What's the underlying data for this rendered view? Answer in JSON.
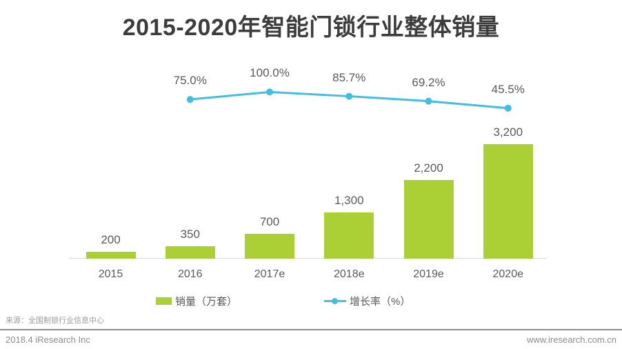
{
  "page": {
    "title": "2015-2020年智能门锁行业整体销量",
    "source_note": "来源：全国制锁行业信息中心",
    "footer_left": "2018.4 iResearch Inc",
    "footer_right": "www.iresearch.com.cn"
  },
  "colors": {
    "bar_green": "#aad035",
    "line_blue": "#41bee3",
    "title_text": "#3c3c3c",
    "label_text": "#595959",
    "axis_gray": "#d9d9d9",
    "footer_gray": "#8c8c8c"
  },
  "chart_data": {
    "type": "bar",
    "title": "2015-2020年智能门锁行业整体销量",
    "categories": [
      "2015",
      "2016",
      "2017e",
      "2018e",
      "2019e",
      "2020e"
    ],
    "series": [
      {
        "name": "销量（万套）",
        "type": "bar",
        "color": "#aad035",
        "values": [
          200,
          350,
          700,
          1300,
          2200,
          3200
        ],
        "labels": [
          "200",
          "350",
          "700",
          "1,300",
          "2,200",
          "3,200"
        ]
      },
      {
        "name": "增长率（%）",
        "type": "line",
        "color": "#41bee3",
        "categories": [
          "2016",
          "2017e",
          "2018e",
          "2019e",
          "2020e"
        ],
        "values": [
          75.0,
          100.0,
          85.7,
          69.2,
          45.5
        ],
        "labels": [
          "75.0%",
          "100.0%",
          "85.7%",
          "69.2%",
          "45.5%"
        ]
      }
    ],
    "legend": [
      "销量（万套）",
      "增长率（%）"
    ],
    "legend_position": "bottom",
    "grid": false,
    "y_axis_visible": false,
    "ylim_bars": [
      0,
      3200
    ],
    "xlabel": "",
    "ylabel": ""
  }
}
